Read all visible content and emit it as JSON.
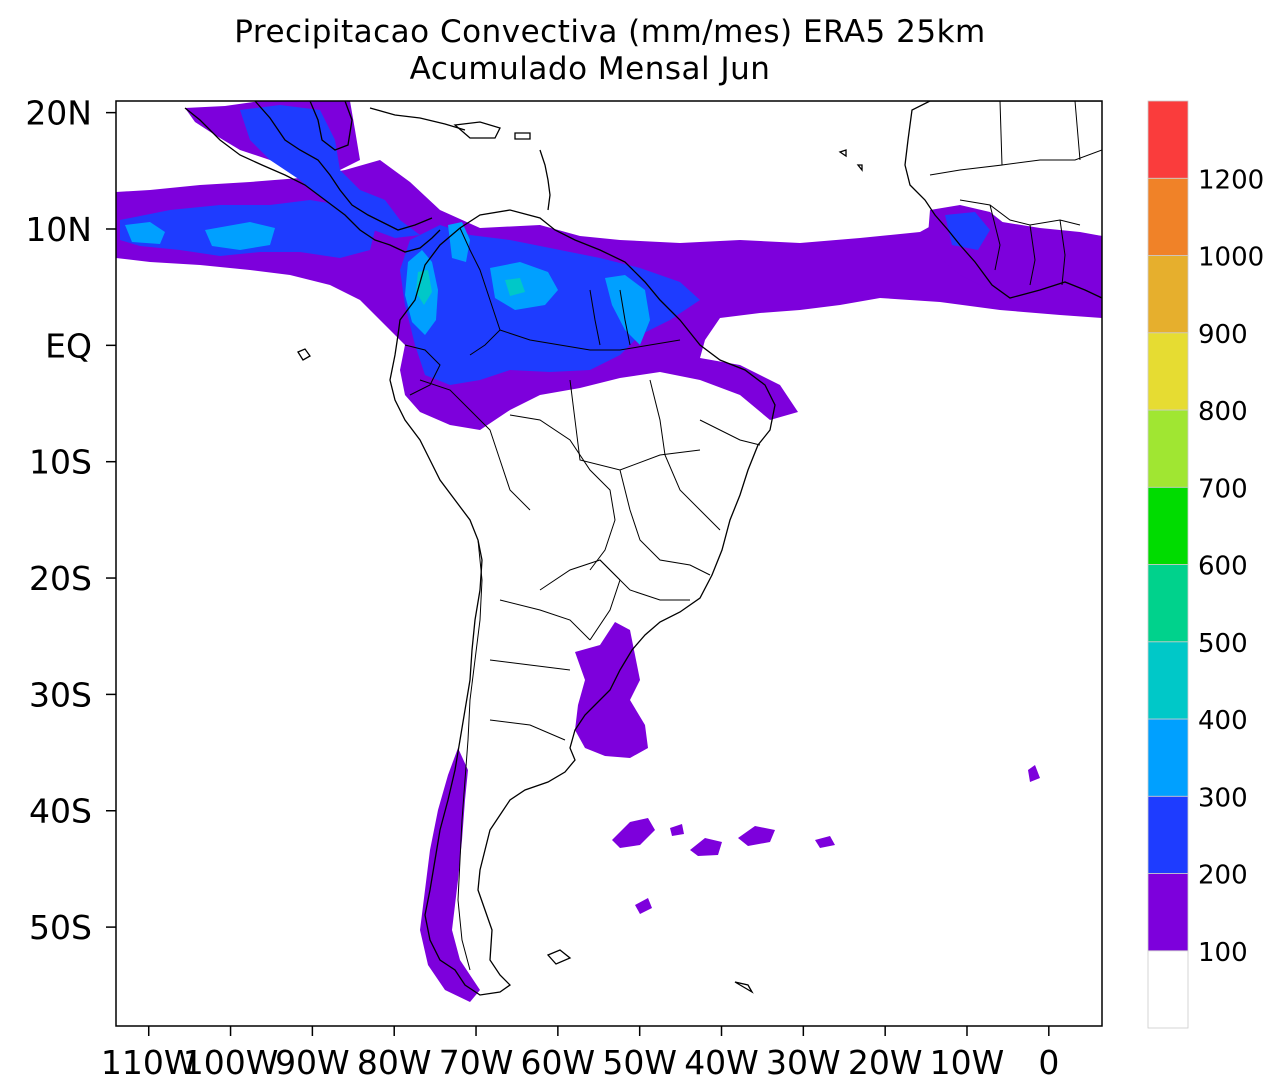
{
  "title": {
    "line1": "Precipitacao Convectiva (mm/mes) ERA5  25km",
    "line2": "Acumulado Mensal Jun"
  },
  "map": {
    "lon_range": [
      -114,
      6.5
    ],
    "lat_range": [
      -58.5,
      21.0
    ],
    "lon_ticks": [
      {
        "value": -110,
        "label": "110W"
      },
      {
        "value": -100,
        "label": "100W"
      },
      {
        "value": -90,
        "label": "90W"
      },
      {
        "value": -80,
        "label": "80W"
      },
      {
        "value": -70,
        "label": "70W"
      },
      {
        "value": -60,
        "label": "60W"
      },
      {
        "value": -50,
        "label": "50W"
      },
      {
        "value": -40,
        "label": "40W"
      },
      {
        "value": -30,
        "label": "30W"
      },
      {
        "value": -20,
        "label": "20W"
      },
      {
        "value": -10,
        "label": "10W"
      },
      {
        "value": 0,
        "label": "0"
      }
    ],
    "lat_ticks": [
      {
        "value": 20,
        "label": "20N"
      },
      {
        "value": 10,
        "label": "10N"
      },
      {
        "value": 0,
        "label": "EQ"
      },
      {
        "value": -10,
        "label": "10S"
      },
      {
        "value": -20,
        "label": "20S"
      },
      {
        "value": -30,
        "label": "30S"
      },
      {
        "value": -40,
        "label": "40S"
      },
      {
        "value": -50,
        "label": "50S"
      }
    ]
  },
  "colorbar": {
    "bins": [
      {
        "color": "#ffffff",
        "from": 0,
        "to": 100
      },
      {
        "color": "#7d00dc",
        "from": 100,
        "to": 200
      },
      {
        "color": "#1e3cff",
        "from": 200,
        "to": 300
      },
      {
        "color": "#00a0ff",
        "from": 300,
        "to": 400
      },
      {
        "color": "#00c8c8",
        "from": 400,
        "to": 500
      },
      {
        "color": "#00d28c",
        "from": 500,
        "to": 600
      },
      {
        "color": "#00dc00",
        "from": 600,
        "to": 700
      },
      {
        "color": "#a0e632",
        "from": 700,
        "to": 800
      },
      {
        "color": "#e6dc32",
        "from": 800,
        "to": 900
      },
      {
        "color": "#e6af2d",
        "from": 900,
        "to": 1000
      },
      {
        "color": "#f08228",
        "from": 1000,
        "to": 1200
      },
      {
        "color": "#fa3c3c",
        "from": 1200,
        "to": 1400
      }
    ],
    "labels": [
      "100",
      "200",
      "300",
      "400",
      "500",
      "600",
      "700",
      "800",
      "900",
      "1000",
      "1200"
    ]
  },
  "precipitation_regions": [
    {
      "level": "100-200",
      "color": "#7d00dc",
      "area": "ITCZ Pacific / Central America / northern South America / Atlantic to West Africa"
    },
    {
      "level": "100-200",
      "color": "#7d00dc",
      "area": "southern Brazil / Uruguay"
    },
    {
      "level": "100-200",
      "color": "#7d00dc",
      "area": "southern Chile"
    },
    {
      "level": "200-300",
      "color": "#1e3cff",
      "area": "eastern Pacific ITCZ"
    },
    {
      "level": "200-300",
      "color": "#1e3cff",
      "area": "Colombia / Venezuela / northern Amazon"
    },
    {
      "level": "300-400",
      "color": "#00a0ff",
      "area": "Colombian Pacific coast and Guianas"
    },
    {
      "level": "400-500",
      "color": "#00c8c8",
      "area": "scattered cores"
    }
  ]
}
